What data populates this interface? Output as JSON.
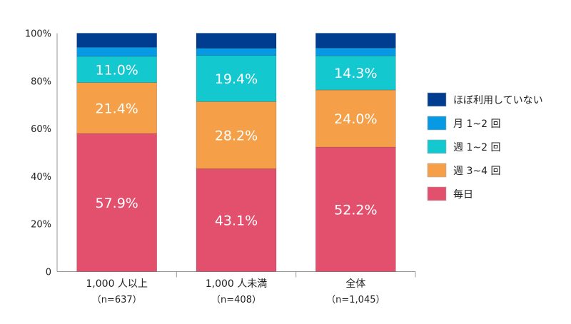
{
  "chart_data": {
    "type": "bar",
    "stacked": true,
    "categories": [
      "1,000 人以上",
      "1,000 人未満",
      "全体"
    ],
    "category_sublabels": [
      "（n=637）",
      "（n=408）",
      "（n=1,045）"
    ],
    "series": [
      {
        "name": "毎日",
        "values": [
          57.9,
          43.1,
          52.2
        ],
        "color": "#e2506e",
        "labels": [
          "57.9%",
          "43.1%",
          "52.2%"
        ]
      },
      {
        "name": "週 3~4 回",
        "values": [
          21.4,
          28.2,
          24.0
        ],
        "color": "#f5a049",
        "labels": [
          "21.4%",
          "28.2%",
          "24.0%"
        ]
      },
      {
        "name": "週 1~2 回",
        "values": [
          11.0,
          19.4,
          14.3
        ],
        "color": "#14c8d0",
        "labels": [
          "11.0%",
          "19.4%",
          "14.3%"
        ]
      },
      {
        "name": "月 1~2 回",
        "values": [
          3.8,
          3.0,
          3.3
        ],
        "color": "#0799e3"
      },
      {
        "name": "ほぼ利用していない",
        "values": [
          5.9,
          6.3,
          6.2
        ],
        "color": "#003c8f"
      }
    ],
    "yticks": [
      "0",
      "20%",
      "40%",
      "60%",
      "80%",
      "100%"
    ],
    "ylim": [
      0,
      100
    ],
    "grid": false,
    "legend_position": "right"
  }
}
